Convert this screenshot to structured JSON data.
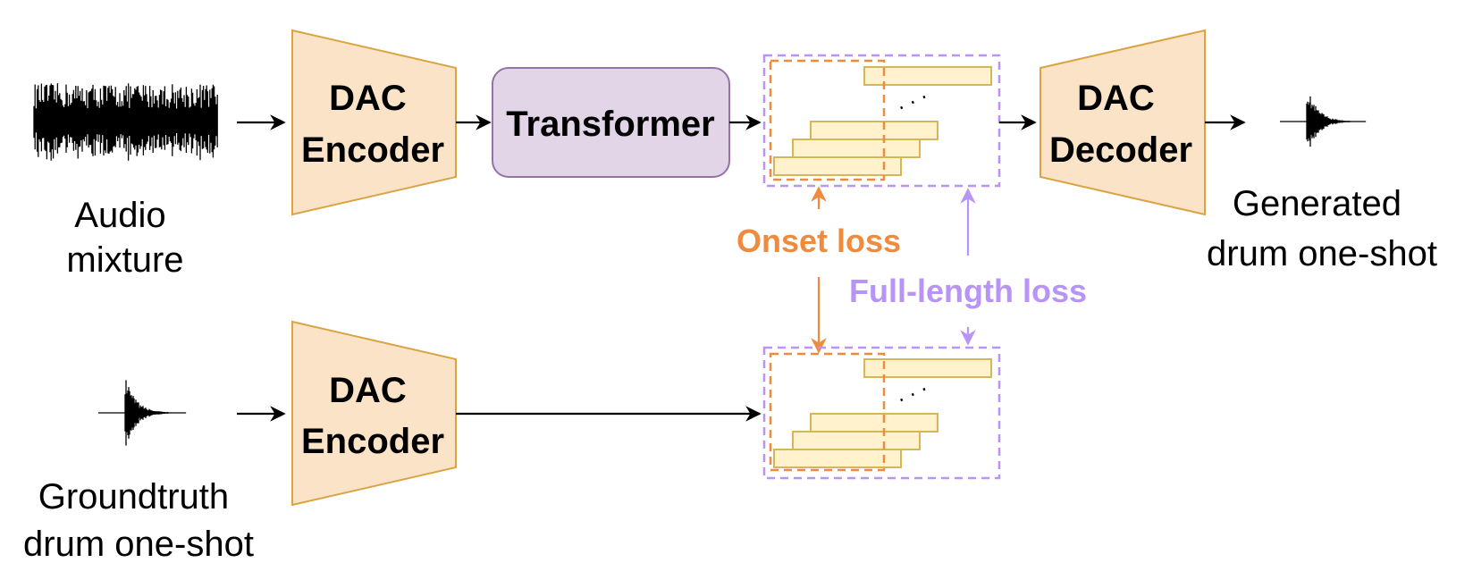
{
  "colors": {
    "block_fill": "#fbe3c8",
    "block_stroke": "#d9a441",
    "transformer_fill": "#e1d5e7",
    "transformer_stroke": "#9673a6",
    "token_fill": "#fff2cc",
    "token_stroke": "#d6b656",
    "onset": "#f08a3c",
    "full_length": "#b794f6",
    "arrow": "#000000"
  },
  "top_row": {
    "input_label": [
      "Audio",
      "mixture"
    ],
    "encoder_label": [
      "DAC",
      "Encoder"
    ],
    "transformer_label": "Transformer",
    "decoder_label": [
      "DAC",
      "Decoder"
    ],
    "output_label": [
      "Generated",
      "drum one-shot"
    ]
  },
  "bottom_row": {
    "input_label": [
      "Groundtruth",
      "drum one-shot"
    ],
    "encoder_label": [
      "DAC",
      "Encoder"
    ]
  },
  "losses": {
    "onset": "Onset loss",
    "full_length": "Full-length loss"
  },
  "icons": {
    "mixture_waveform": "waveform-dense-icon",
    "oneshot_waveform": "waveform-oneshot-icon",
    "ellipsis": "diagonal-ellipsis-icon"
  }
}
